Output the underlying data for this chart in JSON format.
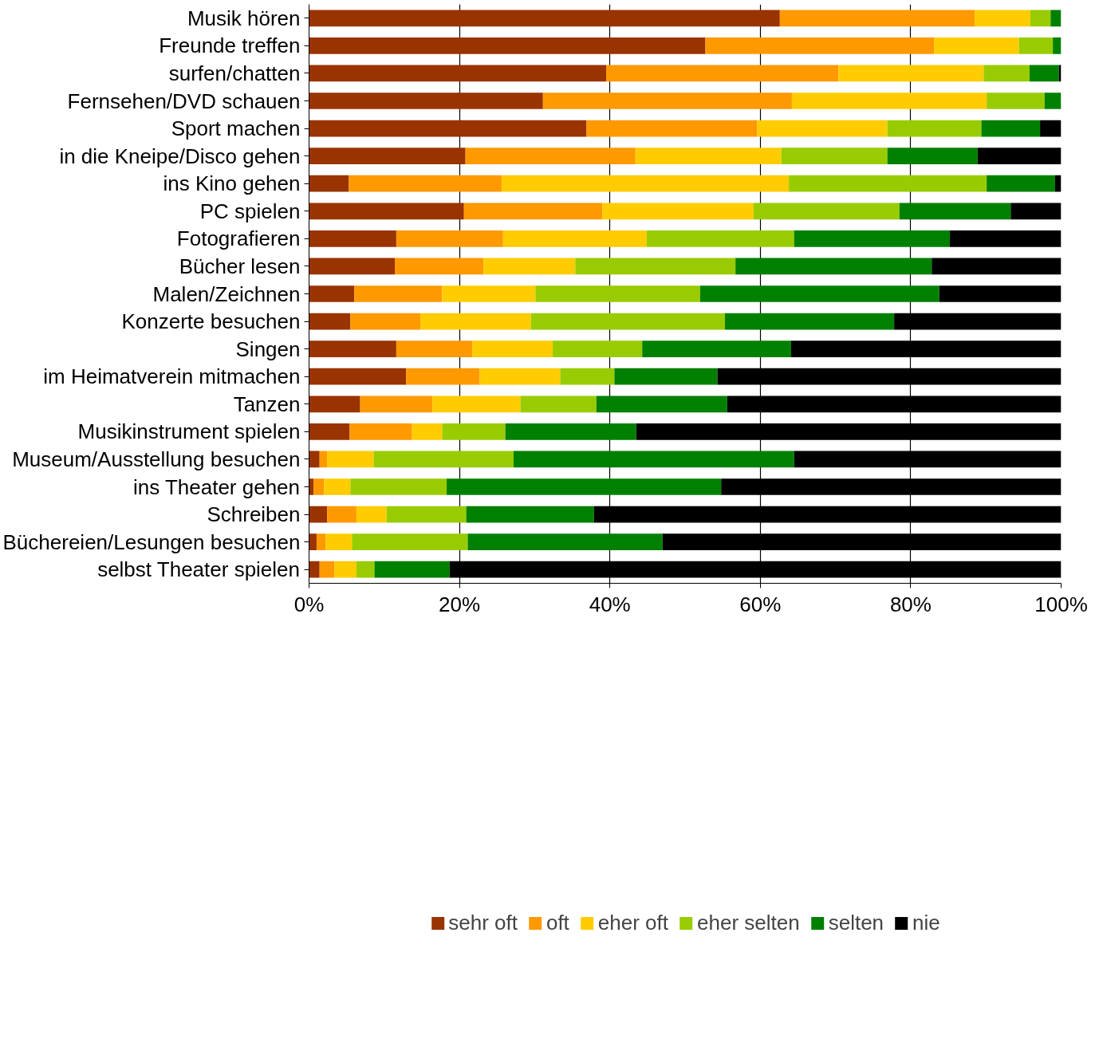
{
  "chart_data": {
    "type": "bar",
    "orientation": "horizontal",
    "stacked": true,
    "categories": [
      "Musik hören",
      "Freunde treffen",
      "surfen/chatten",
      "Fernsehen/DVD schauen",
      "Sport machen",
      "in die Kneipe/Disco gehen",
      "ins Kino gehen",
      "PC spielen",
      "Fotografieren",
      "Bücher lesen",
      "Malen/Zeichnen",
      "Konzerte besuchen",
      "Singen",
      "im Heimatverein mitmachen",
      "Tanzen",
      "Musikinstrument spielen",
      "Museum/Ausstellung besuchen",
      "ins Theater gehen",
      "Schreiben",
      "Büchereien/Lesungen besuchen",
      "selbst Theater spielen"
    ],
    "series": [
      {
        "name": "sehr oft",
        "color": "#993300",
        "values": [
          62.6,
          52.7,
          39.5,
          31.1,
          36.9,
          20.8,
          5.3,
          20.6,
          11.6,
          11.4,
          6.0,
          5.5,
          11.6,
          12.9,
          6.8,
          5.4,
          1.4,
          0.6,
          2.4,
          1.0,
          1.4
        ]
      },
      {
        "name": "oft",
        "color": "#ff9900",
        "values": [
          25.9,
          30.4,
          30.9,
          33.1,
          22.7,
          22.6,
          20.3,
          18.4,
          14.2,
          11.8,
          11.7,
          9.3,
          10.1,
          9.8,
          9.6,
          8.3,
          1.0,
          1.4,
          3.9,
          1.2,
          2.0
        ]
      },
      {
        "name": "eher oft",
        "color": "#ffcc00",
        "values": [
          7.4,
          11.3,
          19.3,
          25.9,
          17.3,
          19.4,
          38.2,
          20.1,
          19.1,
          12.2,
          12.4,
          14.7,
          10.7,
          10.7,
          11.7,
          4.0,
          6.2,
          3.5,
          4.0,
          3.5,
          2.9
        ]
      },
      {
        "name": "eher selten",
        "color": "#99cc00",
        "values": [
          2.7,
          4.5,
          6.1,
          7.7,
          12.5,
          14.1,
          26.3,
          19.4,
          19.6,
          21.3,
          21.9,
          25.8,
          11.9,
          7.2,
          10.1,
          8.4,
          18.6,
          12.8,
          10.6,
          15.4,
          2.4
        ]
      },
      {
        "name": "selten",
        "color": "#008000",
        "values": [
          1.4,
          1.1,
          3.9,
          2.2,
          7.8,
          12.0,
          9.1,
          14.8,
          20.7,
          26.1,
          31.8,
          22.5,
          19.8,
          13.7,
          17.4,
          17.4,
          37.3,
          36.5,
          17.0,
          25.9,
          10.0
        ]
      },
      {
        "name": "nie",
        "color": "#000000",
        "values": [
          0,
          0,
          0.3,
          0,
          2.8,
          11.1,
          0.8,
          6.7,
          14.8,
          17.2,
          16.2,
          22.2,
          35.9,
          45.7,
          44.4,
          56.5,
          35.5,
          45.2,
          62.1,
          53.0,
          81.3
        ]
      }
    ],
    "xlim": [
      0,
      100
    ],
    "xticks": [
      {
        "value": 0,
        "label": "0%"
      },
      {
        "value": 20,
        "label": "20%"
      },
      {
        "value": 40,
        "label": "40%"
      },
      {
        "value": 60,
        "label": "60%"
      },
      {
        "value": 80,
        "label": "80%"
      },
      {
        "value": 100,
        "label": "100%"
      }
    ],
    "grid": "x",
    "legend": "bottom"
  }
}
